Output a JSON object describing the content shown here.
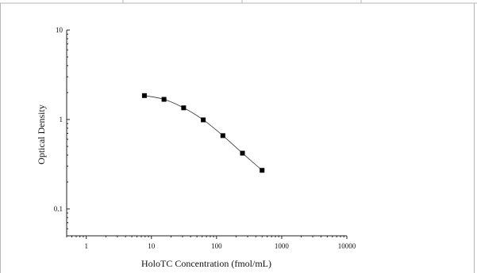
{
  "chart_data": {
    "type": "scatter",
    "title": "",
    "xlabel": "HoloTC Concentration (fmol/mL)",
    "ylabel": "Optical Density",
    "xscale": "log",
    "yscale": "log",
    "xlim": [
      0.5,
      10000
    ],
    "ylim": [
      0.05,
      10
    ],
    "x_tick_labels": [
      "1",
      "10",
      "100",
      "1000",
      "10000"
    ],
    "y_tick_labels": [
      "0.1",
      "1",
      "10"
    ],
    "grid": false,
    "legend": "none",
    "series": [
      {
        "x": [
          7.8,
          15.6,
          31.25,
          62.5,
          125,
          250,
          500
        ],
        "y": [
          1.85,
          1.68,
          1.35,
          0.99,
          0.66,
          0.42,
          0.27
        ],
        "marker": "square",
        "line": "smooth",
        "color": "#000000"
      }
    ]
  }
}
